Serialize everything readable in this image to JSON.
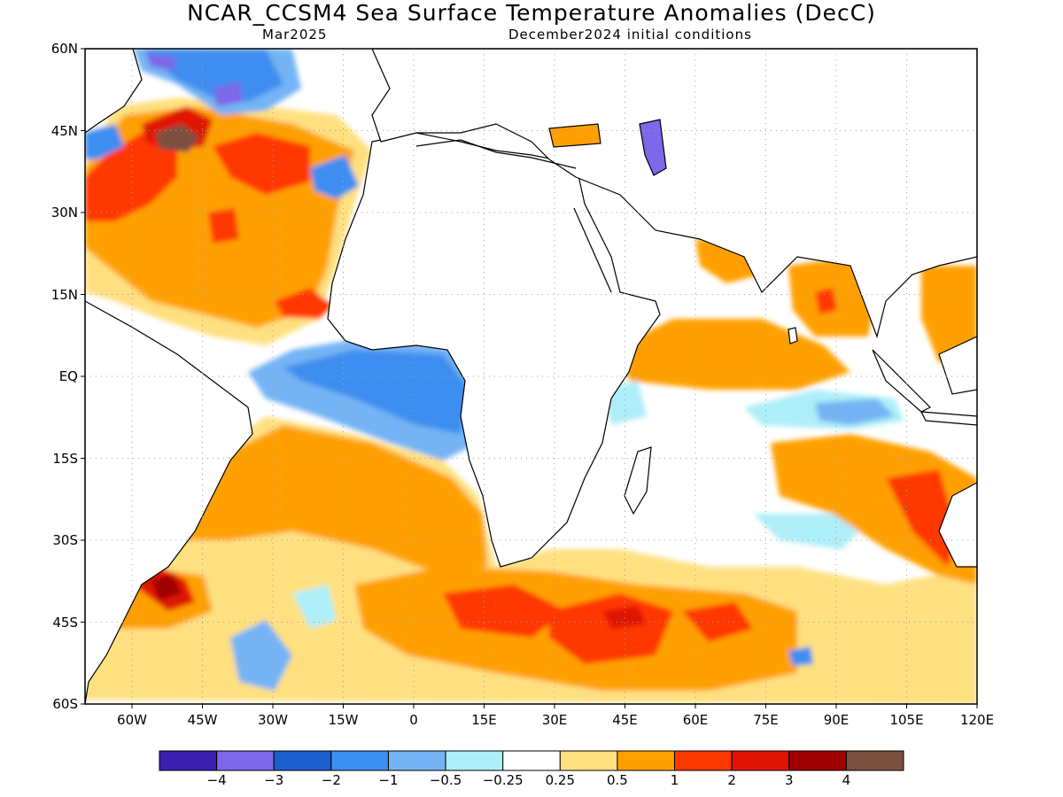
{
  "title": "NCAR_CCSM4 Sea Surface Temperature Anomalies (DecC)",
  "subtitle_left": "Mar2025",
  "subtitle_right": "December2024 initial conditions",
  "lat_labels": [
    "60N",
    "45N",
    "30N",
    "15N",
    "EQ",
    "15S",
    "30S",
    "45S",
    "60S"
  ],
  "lon_labels": [
    "60W",
    "45W",
    "30W",
    "15W",
    "0",
    "15E",
    "30E",
    "45E",
    "60E",
    "75E",
    "90E",
    "105E",
    "120E"
  ],
  "colorbar": {
    "colors": [
      "#3a1fb0",
      "#7c68e8",
      "#1a5ed0",
      "#3c8ef0",
      "#74b4f4",
      "#aeeef8",
      "#ffffff",
      "#ffe080",
      "#ffa000",
      "#ff3800",
      "#e01400",
      "#a00000",
      "#7a5040"
    ],
    "labels": [
      "−4",
      "−3",
      "−2",
      "−1",
      "−0.5",
      "−0.25",
      "0.25",
      "0.5",
      "1",
      "2",
      "3",
      "4"
    ]
  },
  "colors": {
    "land": "#ffffff",
    "coastline": "#000000",
    "grid": "#a0a0a0"
  }
}
